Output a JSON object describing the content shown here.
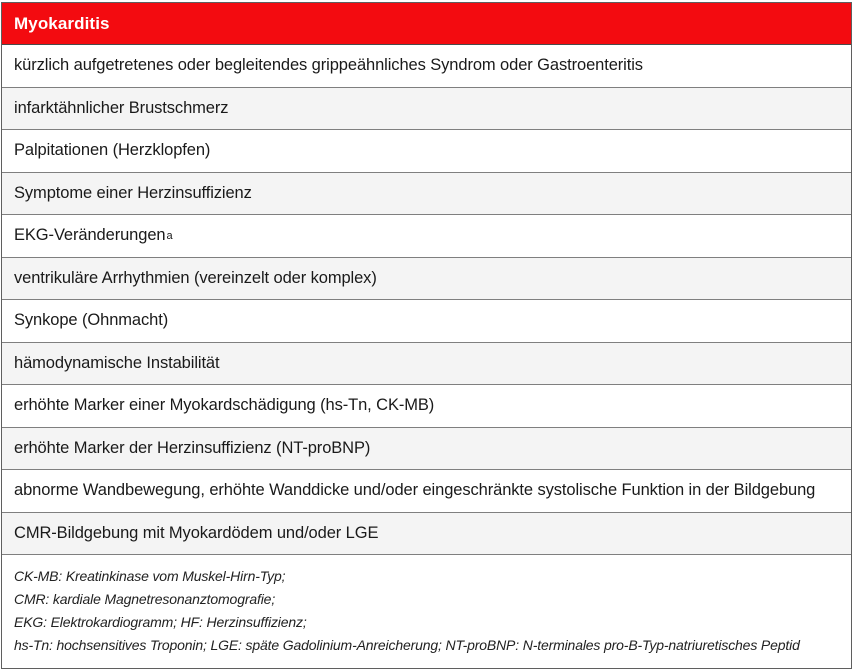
{
  "table": {
    "header": {
      "title": "Myokarditis"
    },
    "rows": [
      {
        "text": "kürzlich aufgetretenes oder begleitendes grippeähnliches Syndrom oder Gastroenteritis"
      },
      {
        "text": "infarktähnlicher Brustschmerz"
      },
      {
        "text": "Palpitationen (Herzklopfen)"
      },
      {
        "text": "Symptome einer Herzinsuffizienz"
      },
      {
        "text": "EKG-Veränderungen",
        "superscript": "a"
      },
      {
        "text": "ventrikuläre Arrhythmien (vereinzelt oder komplex)"
      },
      {
        "text": "Synkope (Ohnmacht)"
      },
      {
        "text": "hämodynamische Instabilität"
      },
      {
        "text": "erhöhte Marker einer Myokardschädigung (hs-Tn, CK-MB)"
      },
      {
        "text": "erhöhte Marker der Herzinsuffizienz (NT-proBNP)"
      },
      {
        "text": "abnorme Wandbewegung, erhöhte Wanddicke und/oder eingeschränkte systolische Funktion in der Bildgebung"
      },
      {
        "text": "CMR-Bildgebung mit Myokardödem und/oder LGE"
      }
    ],
    "footnotes": [
      "CK-MB: Kreatinkinase vom Muskel-Hirn-Typ;",
      "CMR: kardiale Magnetresonanztomografie;",
      "EKG: Elektrokardiogramm; HF: Herzinsuffizienz;",
      "hs-Tn: hochsensitives Troponin; LGE: späte Gadolinium-Anreicherung; NT-proBNP: N-terminales pro-B-Typ-natriuretisches Peptid"
    ],
    "colors": {
      "header_bg": "#f30b10",
      "header_text": "#ffffff",
      "row_bg": "#ffffff",
      "row_alt_bg": "#f4f4f4",
      "border": "#7f7f7f",
      "text": "#1a1a1a"
    }
  }
}
